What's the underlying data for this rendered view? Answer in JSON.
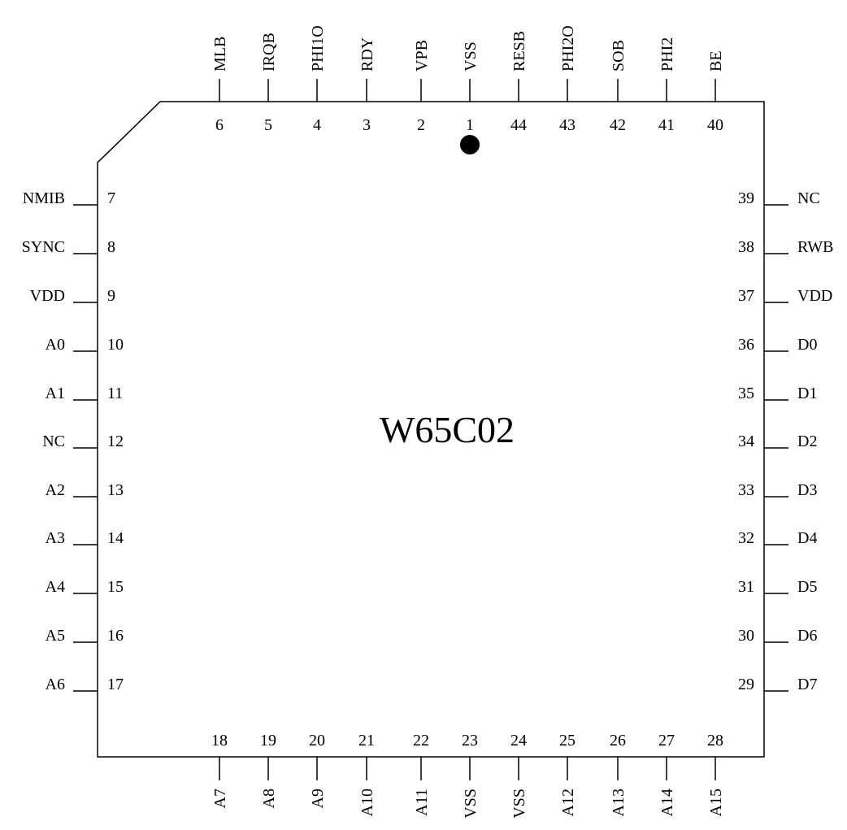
{
  "chip": {
    "name": "W65C02",
    "top_pins": [
      {
        "label": "MLB",
        "number": "6"
      },
      {
        "label": "IRQB",
        "number": "5"
      },
      {
        "label": "PHI1O",
        "number": "4"
      },
      {
        "label": "RDY",
        "number": "3"
      },
      {
        "label": "VPB",
        "number": "2"
      },
      {
        "label": "VSS",
        "number": "1"
      },
      {
        "label": "RESB",
        "number": "44"
      },
      {
        "label": "PHI2O",
        "number": "43"
      },
      {
        "label": "SOB",
        "number": "42"
      },
      {
        "label": "PHI2",
        "number": "41"
      },
      {
        "label": "BE",
        "number": "40"
      }
    ],
    "left_pins": [
      {
        "label": "NMIB",
        "number": "7"
      },
      {
        "label": "SYNC",
        "number": "8"
      },
      {
        "label": "VDD",
        "number": "9"
      },
      {
        "label": "A0",
        "number": "10"
      },
      {
        "label": "A1",
        "number": "11"
      },
      {
        "label": "NC",
        "number": "12"
      },
      {
        "label": "A2",
        "number": "13"
      },
      {
        "label": "A3",
        "number": "14"
      },
      {
        "label": "A4",
        "number": "15"
      },
      {
        "label": "A5",
        "number": "16"
      },
      {
        "label": "A6",
        "number": "17"
      }
    ],
    "right_pins": [
      {
        "label": "NC",
        "number": "39"
      },
      {
        "label": "RWB",
        "number": "38"
      },
      {
        "label": "VDD",
        "number": "37"
      },
      {
        "label": "D0",
        "number": "36"
      },
      {
        "label": "D1",
        "number": "35"
      },
      {
        "label": "D2",
        "number": "34"
      },
      {
        "label": "D3",
        "number": "33"
      },
      {
        "label": "D4",
        "number": "32"
      },
      {
        "label": "D5",
        "number": "31"
      },
      {
        "label": "D6",
        "number": "30"
      },
      {
        "label": "D7",
        "number": "29"
      }
    ],
    "bottom_pins": [
      {
        "label": "A7",
        "number": "18"
      },
      {
        "label": "A8",
        "number": "19"
      },
      {
        "label": "A9",
        "number": "20"
      },
      {
        "label": "A10",
        "number": "21"
      },
      {
        "label": "A11",
        "number": "22"
      },
      {
        "label": "VSS",
        "number": "23"
      },
      {
        "label": "VSS",
        "number": "24"
      },
      {
        "label": "A12",
        "number": "25"
      },
      {
        "label": "A13",
        "number": "26"
      },
      {
        "label": "A14",
        "number": "27"
      },
      {
        "label": "A15",
        "number": "28"
      }
    ]
  }
}
